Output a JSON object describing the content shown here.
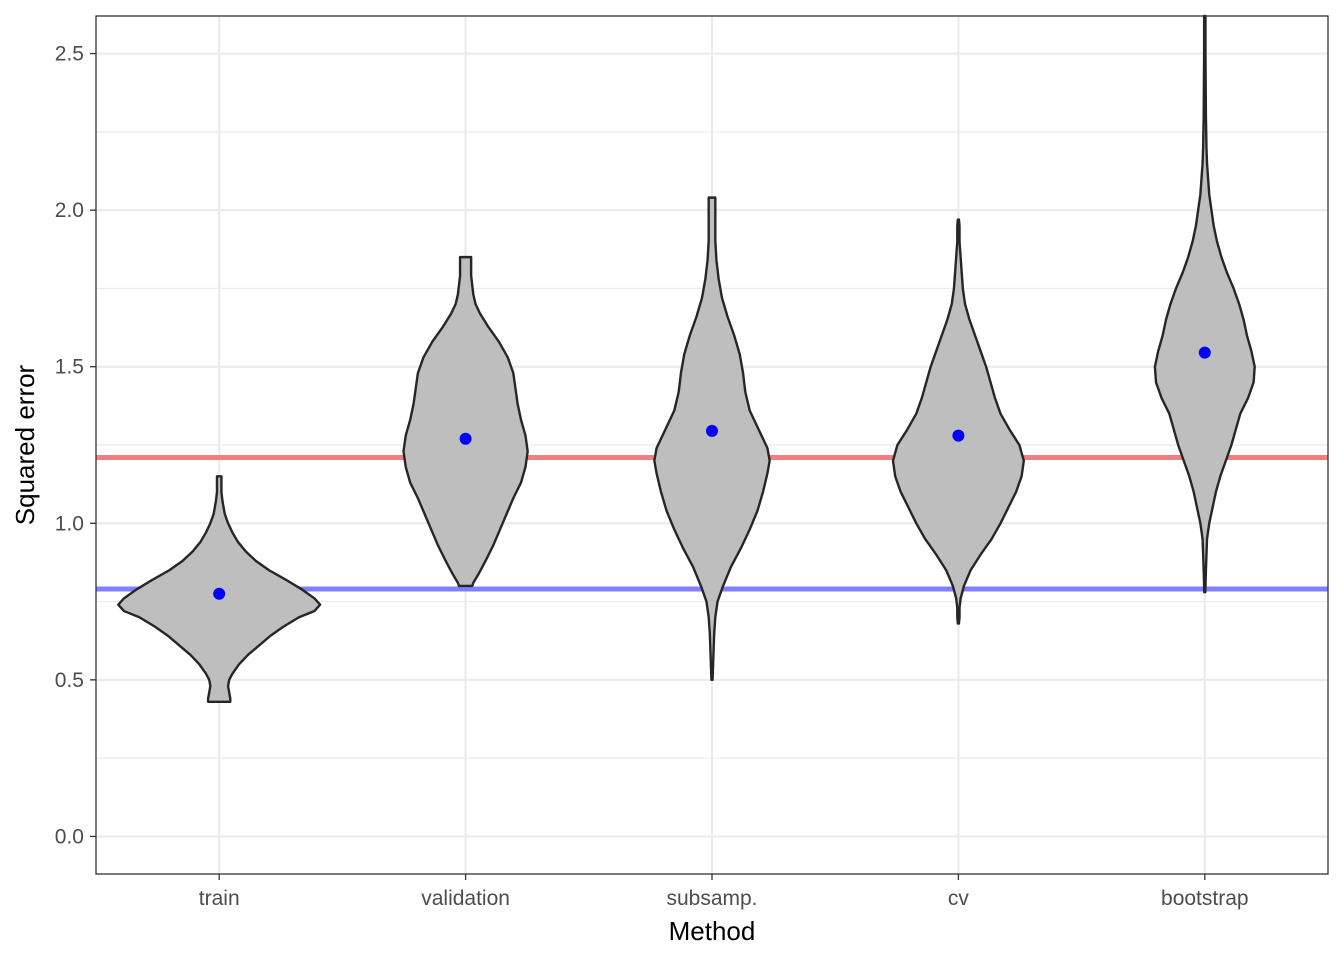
{
  "chart_data": {
    "type": "violin",
    "title": "",
    "xlabel": "Method",
    "ylabel": "Squared error",
    "ylim": [
      -0.12,
      2.62
    ],
    "y_ticks": [
      "0.0",
      "0.5",
      "1.0",
      "1.5",
      "2.0",
      "2.5"
    ],
    "y_tick_values": [
      0.0,
      0.5,
      1.0,
      1.5,
      2.0,
      2.5
    ],
    "y_minor_values": [
      0.25,
      0.75,
      1.25,
      1.75,
      2.25
    ],
    "grid": true,
    "categories": [
      "train",
      "validation",
      "subsamp.",
      "cv",
      "bootstrap"
    ],
    "violins": [
      {
        "method": "train",
        "mean": 0.775,
        "profile": [
          [
            0.43,
            0.1
          ],
          [
            0.44,
            0.1
          ],
          [
            0.46,
            0.09
          ],
          [
            0.48,
            0.08
          ],
          [
            0.5,
            0.09
          ],
          [
            0.52,
            0.12
          ],
          [
            0.55,
            0.18
          ],
          [
            0.58,
            0.26
          ],
          [
            0.61,
            0.36
          ],
          [
            0.64,
            0.46
          ],
          [
            0.67,
            0.58
          ],
          [
            0.7,
            0.72
          ],
          [
            0.72,
            0.86
          ],
          [
            0.74,
            0.91
          ],
          [
            0.76,
            0.86
          ],
          [
            0.79,
            0.74
          ],
          [
            0.82,
            0.6
          ],
          [
            0.85,
            0.45
          ],
          [
            0.88,
            0.33
          ],
          [
            0.91,
            0.24
          ],
          [
            0.94,
            0.17
          ],
          [
            0.97,
            0.12
          ],
          [
            1.0,
            0.08
          ],
          [
            1.03,
            0.05
          ],
          [
            1.07,
            0.03
          ],
          [
            1.1,
            0.02
          ],
          [
            1.13,
            0.02
          ],
          [
            1.15,
            0.02
          ]
        ]
      },
      {
        "method": "validation",
        "mean": 1.27,
        "profile": [
          [
            0.8,
            0.06
          ],
          [
            0.81,
            0.07
          ],
          [
            0.84,
            0.12
          ],
          [
            0.88,
            0.18
          ],
          [
            0.93,
            0.25
          ],
          [
            0.98,
            0.31
          ],
          [
            1.03,
            0.37
          ],
          [
            1.08,
            0.43
          ],
          [
            1.13,
            0.5
          ],
          [
            1.18,
            0.54
          ],
          [
            1.23,
            0.56
          ],
          [
            1.28,
            0.54
          ],
          [
            1.33,
            0.5
          ],
          [
            1.38,
            0.47
          ],
          [
            1.43,
            0.45
          ],
          [
            1.48,
            0.43
          ],
          [
            1.53,
            0.38
          ],
          [
            1.58,
            0.3
          ],
          [
            1.63,
            0.2
          ],
          [
            1.67,
            0.13
          ],
          [
            1.7,
            0.09
          ],
          [
            1.73,
            0.07
          ],
          [
            1.76,
            0.06
          ],
          [
            1.79,
            0.05
          ],
          [
            1.82,
            0.05
          ],
          [
            1.85,
            0.05
          ]
        ]
      },
      {
        "method": "subsamp.",
        "mean": 1.295,
        "profile": [
          [
            0.5,
            0.005
          ],
          [
            0.55,
            0.01
          ],
          [
            0.6,
            0.015
          ],
          [
            0.65,
            0.02
          ],
          [
            0.7,
            0.03
          ],
          [
            0.75,
            0.05
          ],
          [
            0.8,
            0.1
          ],
          [
            0.86,
            0.17
          ],
          [
            0.92,
            0.26
          ],
          [
            0.98,
            0.34
          ],
          [
            1.04,
            0.41
          ],
          [
            1.1,
            0.46
          ],
          [
            1.16,
            0.5
          ],
          [
            1.2,
            0.52
          ],
          [
            1.24,
            0.5
          ],
          [
            1.3,
            0.42
          ],
          [
            1.36,
            0.34
          ],
          [
            1.42,
            0.3
          ],
          [
            1.48,
            0.28
          ],
          [
            1.54,
            0.25
          ],
          [
            1.6,
            0.2
          ],
          [
            1.66,
            0.14
          ],
          [
            1.72,
            0.09
          ],
          [
            1.78,
            0.06
          ],
          [
            1.84,
            0.04
          ],
          [
            1.9,
            0.03
          ],
          [
            1.96,
            0.03
          ],
          [
            2.0,
            0.03
          ],
          [
            2.04,
            0.03
          ]
        ]
      },
      {
        "method": "cv",
        "mean": 1.28,
        "profile": [
          [
            0.68,
            0.005
          ],
          [
            0.7,
            0.01
          ],
          [
            0.73,
            0.01
          ],
          [
            0.76,
            0.02
          ],
          [
            0.8,
            0.05
          ],
          [
            0.85,
            0.11
          ],
          [
            0.9,
            0.2
          ],
          [
            0.95,
            0.3
          ],
          [
            1.0,
            0.38
          ],
          [
            1.05,
            0.45
          ],
          [
            1.1,
            0.52
          ],
          [
            1.15,
            0.57
          ],
          [
            1.2,
            0.59
          ],
          [
            1.25,
            0.55
          ],
          [
            1.3,
            0.46
          ],
          [
            1.35,
            0.38
          ],
          [
            1.4,
            0.33
          ],
          [
            1.45,
            0.29
          ],
          [
            1.5,
            0.25
          ],
          [
            1.55,
            0.2
          ],
          [
            1.6,
            0.15
          ],
          [
            1.65,
            0.1
          ],
          [
            1.7,
            0.06
          ],
          [
            1.75,
            0.04
          ],
          [
            1.8,
            0.03
          ],
          [
            1.85,
            0.02
          ],
          [
            1.9,
            0.01
          ],
          [
            1.95,
            0.01
          ],
          [
            1.97,
            0.005
          ]
        ]
      },
      {
        "method": "bootstrap",
        "mean": 1.545,
        "profile": [
          [
            0.78,
            0.005
          ],
          [
            0.85,
            0.01
          ],
          [
            0.95,
            0.02
          ],
          [
            1.0,
            0.04
          ],
          [
            1.05,
            0.07
          ],
          [
            1.1,
            0.1
          ],
          [
            1.15,
            0.14
          ],
          [
            1.2,
            0.19
          ],
          [
            1.25,
            0.24
          ],
          [
            1.3,
            0.28
          ],
          [
            1.35,
            0.32
          ],
          [
            1.4,
            0.39
          ],
          [
            1.45,
            0.44
          ],
          [
            1.5,
            0.45
          ],
          [
            1.55,
            0.42
          ],
          [
            1.6,
            0.38
          ],
          [
            1.65,
            0.35
          ],
          [
            1.7,
            0.31
          ],
          [
            1.75,
            0.26
          ],
          [
            1.8,
            0.2
          ],
          [
            1.85,
            0.15
          ],
          [
            1.9,
            0.11
          ],
          [
            1.95,
            0.08
          ],
          [
            2.0,
            0.06
          ],
          [
            2.05,
            0.04
          ],
          [
            2.1,
            0.03
          ],
          [
            2.15,
            0.02
          ],
          [
            2.2,
            0.015
          ],
          [
            2.3,
            0.01
          ],
          [
            2.4,
            0.008
          ],
          [
            2.5,
            0.006
          ],
          [
            2.62,
            0.006
          ]
        ]
      }
    ],
    "reference_lines": [
      {
        "name": "red-line",
        "y": 1.21,
        "color": "#f08080"
      },
      {
        "name": "blue-line",
        "y": 0.79,
        "color": "#8080ff"
      }
    ],
    "colors": {
      "violin_fill": "#bebebe",
      "violin_stroke": "#262626",
      "mean_point": "#0000ff",
      "grid": "#ebebeb",
      "panel_border": "#333333"
    }
  }
}
